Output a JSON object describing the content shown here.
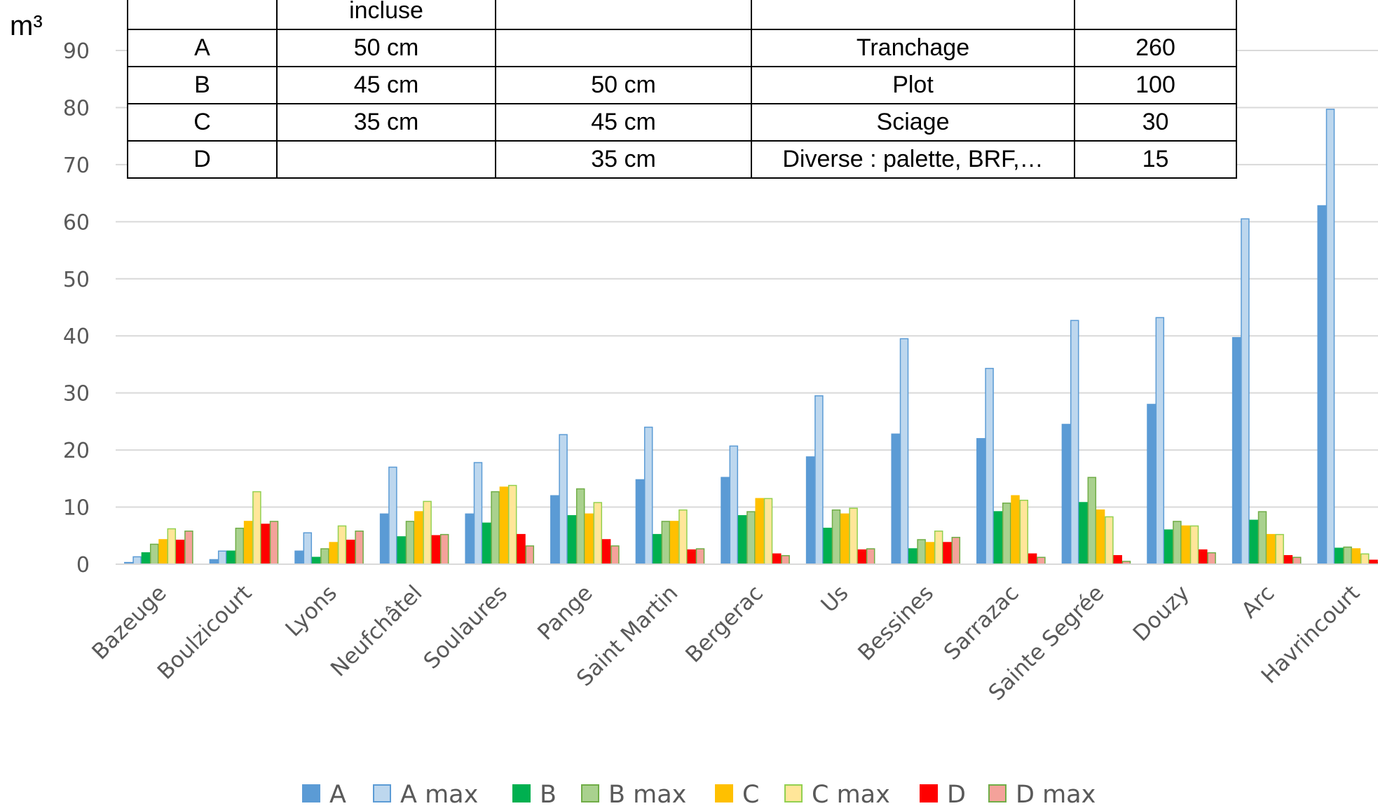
{
  "chart_data": {
    "type": "bar",
    "ylabel": "m³",
    "ylim": [
      0,
      90
    ],
    "yticks": [
      0,
      10,
      20,
      30,
      40,
      50,
      60,
      70,
      80,
      90
    ],
    "grid": true,
    "legend_position": "bottom",
    "categories": [
      "Bazeuge",
      "Boulzicourt",
      "Lyons",
      "Neufchâtel",
      "Soulaures",
      "Pange",
      "Saint Martin",
      "Bergerac",
      "Us",
      "Bessines",
      "Sarrazac",
      "Sainte Segrée",
      "Douzy",
      "Arc",
      "Havrincourt"
    ],
    "series": [
      {
        "name": "A",
        "color": "#5b9bd5",
        "edge": "#5b9bd5",
        "values": [
          0.3,
          0.8,
          2.3,
          8.8,
          8.8,
          12.0,
          14.8,
          15.2,
          18.8,
          22.8,
          22.0,
          24.5,
          28.0,
          39.7,
          62.8
        ]
      },
      {
        "name": "A max",
        "color": "#bdd7ee",
        "edge": "#5b9bd5",
        "values": [
          1.3,
          2.3,
          5.5,
          17.0,
          17.8,
          22.7,
          24.0,
          20.7,
          29.5,
          39.5,
          34.3,
          42.7,
          43.2,
          60.5,
          79.7
        ]
      },
      {
        "name": "B",
        "color": "#00b050",
        "edge": "#00b050",
        "values": [
          2.0,
          2.3,
          1.2,
          4.8,
          7.2,
          8.5,
          5.2,
          8.5,
          6.3,
          2.7,
          9.2,
          10.8,
          6.0,
          7.7,
          2.8
        ]
      },
      {
        "name": "B max",
        "color": "#a9d18e",
        "edge": "#70ad47",
        "values": [
          3.5,
          6.3,
          2.7,
          7.5,
          12.7,
          13.2,
          7.5,
          9.2,
          9.5,
          4.3,
          10.7,
          15.2,
          7.5,
          9.2,
          3.0
        ]
      },
      {
        "name": "C",
        "color": "#ffc000",
        "edge": "#ffc000",
        "values": [
          4.3,
          7.5,
          3.8,
          9.2,
          13.5,
          8.8,
          7.5,
          11.5,
          8.8,
          3.8,
          12.0,
          9.5,
          6.7,
          5.2,
          2.7
        ]
      },
      {
        "name": "C max",
        "color": "#ffe699",
        "edge": "#92d050",
        "values": [
          6.2,
          12.7,
          6.7,
          11.0,
          13.8,
          10.8,
          9.5,
          11.5,
          9.8,
          5.8,
          11.2,
          8.3,
          6.7,
          5.2,
          1.8
        ]
      },
      {
        "name": "D",
        "color": "#ff0000",
        "edge": "#ff0000",
        "values": [
          4.2,
          7.0,
          4.2,
          5.0,
          5.2,
          4.3,
          2.5,
          1.8,
          2.5,
          3.8,
          1.8,
          1.5,
          2.5,
          1.5,
          0.7
        ]
      },
      {
        "name": "D max",
        "color": "#f4a29a",
        "edge": "#70ad47",
        "values": [
          5.8,
          7.5,
          5.8,
          5.2,
          3.2,
          3.2,
          2.7,
          1.5,
          2.7,
          4.7,
          1.2,
          0.5,
          2.0,
          1.2,
          0.3
        ]
      }
    ]
  },
  "table": {
    "rows": [
      [
        "",
        "incluse",
        "",
        "",
        ""
      ],
      [
        "A",
        "50 cm",
        "",
        "Tranchage",
        "260"
      ],
      [
        "B",
        "45 cm",
        "50 cm",
        "Plot",
        "100"
      ],
      [
        "C",
        "35 cm",
        "45 cm",
        "Sciage",
        "30"
      ],
      [
        "D",
        "",
        "35 cm",
        "Diverse : palette, BRF,…",
        "15"
      ]
    ]
  }
}
